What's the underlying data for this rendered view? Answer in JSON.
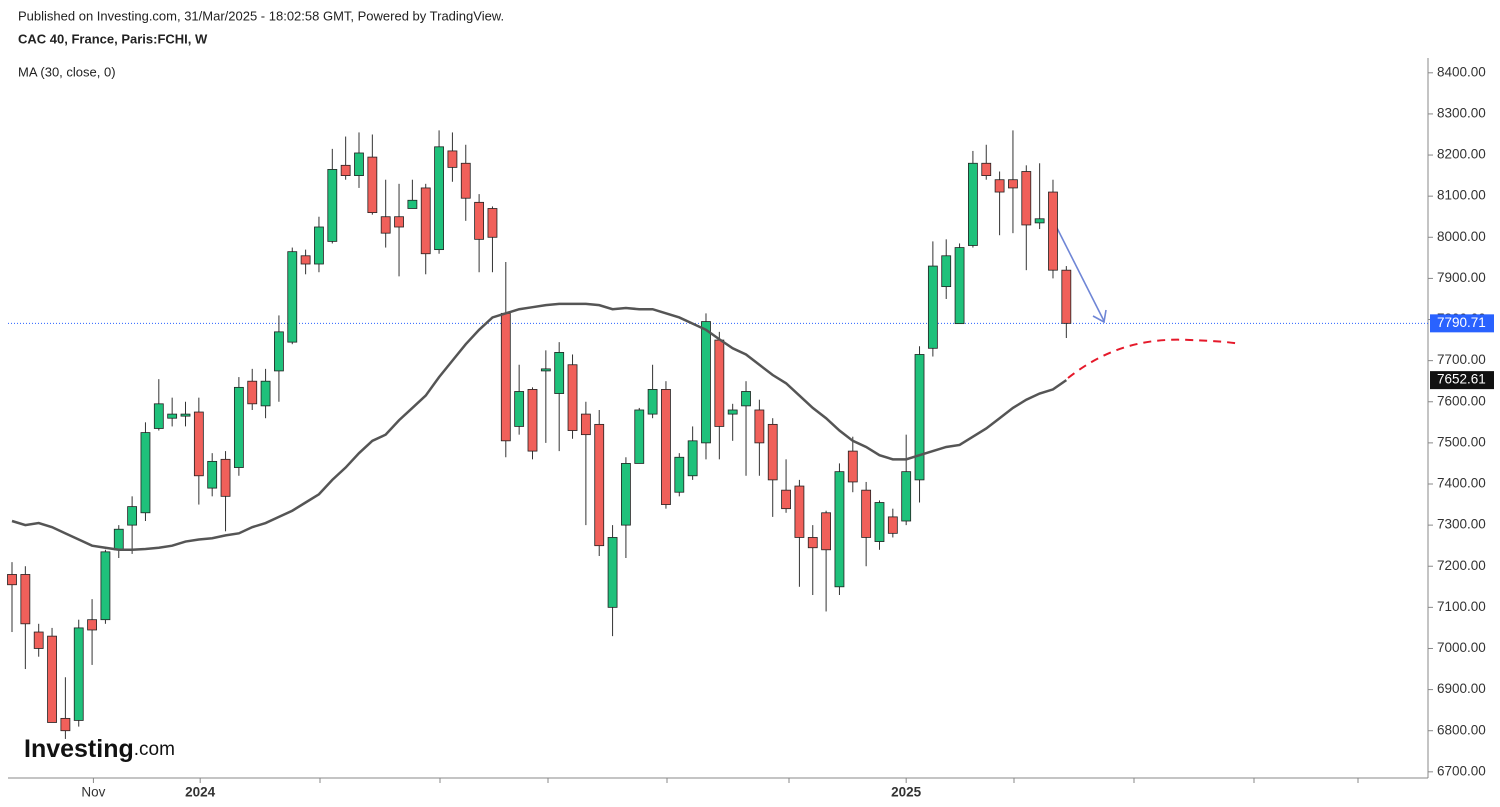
{
  "chart_data": {
    "type": "candlestick",
    "subtitle": "Published on Investing.com, 31/Mar/2025 - 18:02:58 GMT, Powered by TradingView.",
    "title": "CAC 40, France, Paris:FCHI, W",
    "indicator": "MA (30, close, 0)",
    "brand": {
      "name": "Investing",
      "suffix": ".com"
    },
    "up_color": "#1fc17b",
    "down_color": "#f0605a",
    "wick_color": "#333333",
    "last_price_color": "#2962ff",
    "open": [
      7180,
      7180,
      7040,
      7030,
      6830,
      6825,
      7070,
      7070,
      7240,
      7300,
      7330,
      7535,
      7560,
      7565,
      7575,
      7390,
      7460,
      7440,
      7650,
      7590,
      7675,
      7745,
      7955,
      7935,
      7990,
      8175,
      8150,
      8195,
      8050,
      8050,
      8070,
      8120,
      7970,
      8210,
      8180,
      8085,
      8070,
      7815,
      7540,
      7630,
      7675,
      7620,
      7690,
      7570,
      7545,
      7100,
      7300,
      7450,
      7570,
      7630,
      7380,
      7420,
      7500,
      7750,
      7570,
      7590,
      7580,
      7545,
      7385,
      7395,
      7270,
      7330,
      7150,
      7480,
      7385,
      7260,
      7320,
      7310,
      7410,
      7730,
      7880,
      7790,
      7980,
      8180,
      8140,
      8140,
      8160,
      8035,
      8110,
      7920
    ],
    "high": [
      7210,
      7200,
      7060,
      7050,
      6930,
      7070,
      7120,
      7240,
      7300,
      7370,
      7550,
      7655,
      7610,
      7600,
      7610,
      7475,
      7480,
      7660,
      7680,
      7680,
      7810,
      7975,
      7970,
      8050,
      8215,
      8245,
      8255,
      8250,
      8140,
      8130,
      8140,
      8130,
      8260,
      8255,
      8225,
      8105,
      8075,
      7940,
      7690,
      7635,
      7725,
      7745,
      7715,
      7600,
      7580,
      7300,
      7465,
      7585,
      7690,
      7650,
      7475,
      7540,
      7815,
      7770,
      7595,
      7650,
      7605,
      7560,
      7460,
      7410,
      7300,
      7335,
      7450,
      7515,
      7405,
      7360,
      7340,
      7520,
      7735,
      7990,
      7995,
      7985,
      8210,
      8225,
      8160,
      8260,
      8175,
      8180,
      8140,
      7930
    ],
    "low": [
      7040,
      6950,
      6980,
      6820,
      6780,
      6810,
      6960,
      7060,
      7220,
      7230,
      7310,
      7530,
      7540,
      7540,
      7350,
      7370,
      7285,
      7420,
      7580,
      7560,
      7600,
      7740,
      7910,
      7915,
      7985,
      8140,
      8120,
      8055,
      7975,
      7905,
      8070,
      7910,
      7960,
      8135,
      8040,
      7915,
      7915,
      7465,
      7520,
      7460,
      7500,
      7480,
      7510,
      7300,
      7225,
      7030,
      7220,
      7450,
      7560,
      7340,
      7370,
      7410,
      7460,
      7460,
      7505,
      7420,
      7420,
      7320,
      7330,
      7150,
      7130,
      7090,
      7130,
      7380,
      7200,
      7240,
      7270,
      7300,
      7355,
      7710,
      7850,
      7790,
      7975,
      8140,
      8005,
      8010,
      7920,
      8020,
      7900,
      7755
    ],
    "close": [
      7155,
      7060,
      7000,
      6820,
      6800,
      7050,
      7045,
      7235,
      7290,
      7345,
      7525,
      7595,
      7570,
      7570,
      7420,
      7455,
      7370,
      7635,
      7595,
      7650,
      7770,
      7965,
      7935,
      8025,
      8165,
      8150,
      8205,
      8060,
      8010,
      8025,
      8090,
      7960,
      8220,
      8170,
      8095,
      7995,
      8000,
      7505,
      7625,
      7480,
      7680,
      7720,
      7530,
      7520,
      7250,
      7270,
      7450,
      7580,
      7630,
      7350,
      7465,
      7505,
      7795,
      7540,
      7580,
      7625,
      7500,
      7410,
      7340,
      7270,
      7245,
      7240,
      7430,
      7405,
      7270,
      7355,
      7280,
      7430,
      7715,
      7930,
      7955,
      7975,
      8180,
      8150,
      8110,
      8120,
      8030,
      8045,
      7920,
      7790.71
    ],
    "ma": {
      "color": "#555555",
      "values": [
        7310,
        7300,
        7305,
        7295,
        7280,
        7265,
        7250,
        7245,
        7240,
        7240,
        7242,
        7245,
        7250,
        7260,
        7265,
        7268,
        7275,
        7280,
        7295,
        7305,
        7320,
        7335,
        7355,
        7375,
        7410,
        7440,
        7475,
        7505,
        7520,
        7555,
        7585,
        7615,
        7660,
        7700,
        7740,
        7775,
        7805,
        7815,
        7825,
        7830,
        7835,
        7838,
        7838,
        7838,
        7835,
        7825,
        7828,
        7825,
        7825,
        7815,
        7805,
        7790,
        7775,
        7752,
        7730,
        7715,
        7690,
        7665,
        7645,
        7615,
        7585,
        7560,
        7530,
        7505,
        7490,
        7470,
        7460,
        7460,
        7470,
        7480,
        7490,
        7495,
        7515,
        7535,
        7560,
        7585,
        7605,
        7620,
        7630,
        7652.61
      ]
    },
    "ylim": [
      6685,
      8436
    ],
    "yticks": [
      {
        "value": 6700,
        "label": "6700.00"
      },
      {
        "value": 6800,
        "label": "6800.00"
      },
      {
        "value": 6900,
        "label": "6900.00"
      },
      {
        "value": 7000,
        "label": "7000.00"
      },
      {
        "value": 7100,
        "label": "7100.00"
      },
      {
        "value": 7200,
        "label": "7200.00"
      },
      {
        "value": 7300,
        "label": "7300.00"
      },
      {
        "value": 7400,
        "label": "7400.00"
      },
      {
        "value": 7500,
        "label": "7500.00"
      },
      {
        "value": 7600,
        "label": "7600.00"
      },
      {
        "value": 7700,
        "label": "7700.00"
      },
      {
        "value": 7800,
        "label": "7800.00"
      },
      {
        "value": 7900,
        "label": "7900.00"
      },
      {
        "value": 8000,
        "label": "8000.00"
      },
      {
        "value": 8100,
        "label": "8100.00"
      },
      {
        "value": 8200,
        "label": "8200.00"
      },
      {
        "value": 8300,
        "label": "8300.00"
      },
      {
        "value": 8400,
        "label": "8400.00"
      }
    ],
    "xlim": [
      -0.3,
      106.1
    ],
    "xticks": [
      {
        "value": 6.1,
        "label": "Nov"
      },
      {
        "value": 14.1,
        "label": "2024"
      },
      {
        "value": 67,
        "label": "2025"
      }
    ]
  }
}
